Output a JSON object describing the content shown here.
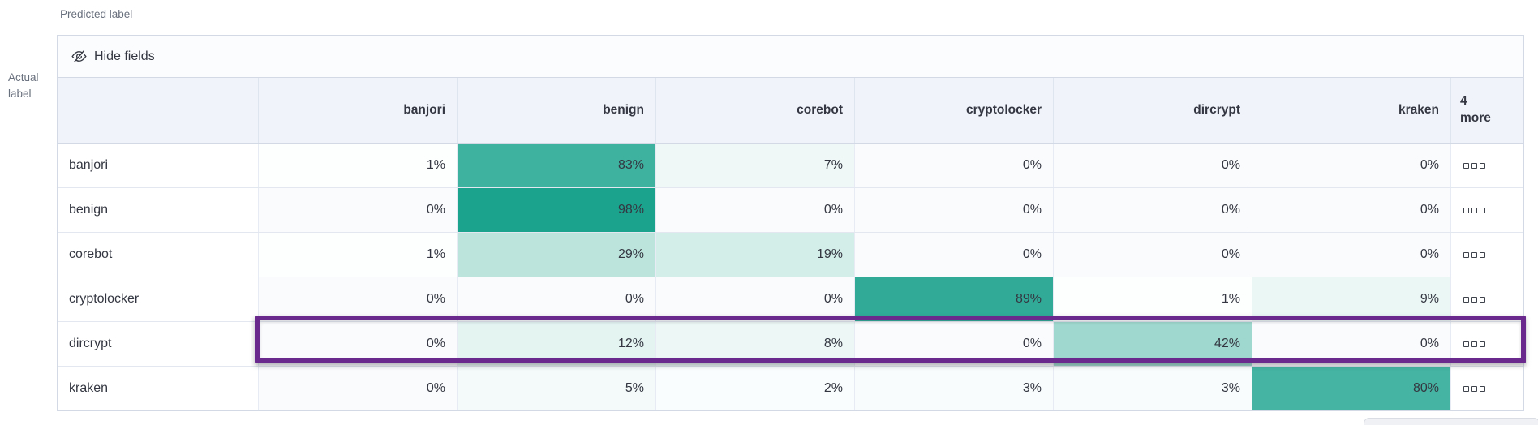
{
  "axis": {
    "predicted_label": "Predicted label",
    "actual_label": "Actual label"
  },
  "toolbar": {
    "hide_fields_label": "Hide fields",
    "hide_fields_icon": "eye-slash-icon"
  },
  "chart_data": {
    "type": "heatmap",
    "xlabel": "Predicted label",
    "ylabel": "Actual label",
    "x_categories": [
      "banjori",
      "benign",
      "corebot",
      "cryptolocker",
      "dircrypt",
      "kraken"
    ],
    "y_categories": [
      "banjori",
      "benign",
      "corebot",
      "cryptolocker",
      "dircrypt",
      "kraken"
    ],
    "values": [
      [
        1,
        83,
        7,
        0,
        0,
        0
      ],
      [
        0,
        98,
        0,
        0,
        0,
        0
      ],
      [
        1,
        29,
        19,
        0,
        0,
        0
      ],
      [
        0,
        0,
        0,
        89,
        1,
        9
      ],
      [
        0,
        12,
        8,
        0,
        42,
        0
      ],
      [
        0,
        5,
        2,
        3,
        3,
        80
      ]
    ],
    "value_suffix": "%",
    "overflow_column_label": "4 more",
    "row_action_icon": "boxes-horizontal-icon",
    "color_scale": {
      "zero_color": "#fafbfd",
      "max_color": "#17a18b",
      "domain": [
        0,
        100
      ]
    },
    "highlight": {
      "row": "dircrypt",
      "color": "#6a2a8d"
    }
  }
}
